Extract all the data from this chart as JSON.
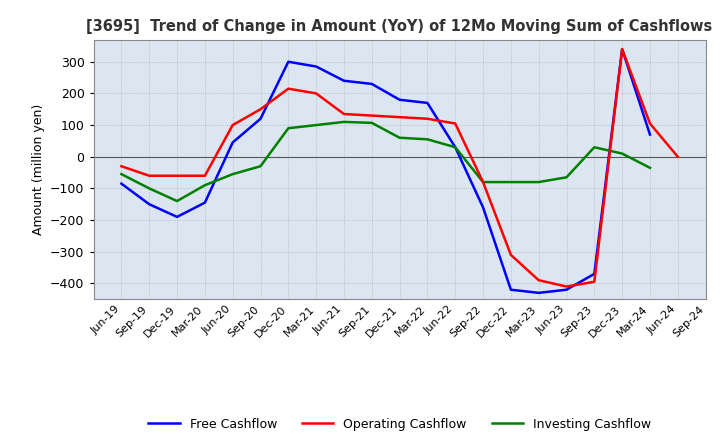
{
  "title": "[3695]  Trend of Change in Amount (YoY) of 12Mo Moving Sum of Cashflows",
  "ylabel": "Amount (million yen)",
  "x_labels": [
    "Jun-19",
    "Sep-19",
    "Dec-19",
    "Mar-20",
    "Jun-20",
    "Sep-20",
    "Dec-20",
    "Mar-21",
    "Jun-21",
    "Sep-21",
    "Dec-21",
    "Mar-22",
    "Jun-22",
    "Sep-22",
    "Dec-22",
    "Mar-23",
    "Jun-23",
    "Sep-23",
    "Dec-23",
    "Mar-24",
    "Jun-24",
    "Sep-24"
  ],
  "operating": [
    -30,
    -60,
    -60,
    -60,
    100,
    150,
    215,
    200,
    135,
    130,
    125,
    120,
    105,
    -80,
    -310,
    -390,
    -410,
    -395,
    340,
    105,
    0,
    null
  ],
  "investing": [
    -55,
    -100,
    -140,
    -90,
    -55,
    -30,
    90,
    100,
    110,
    107,
    60,
    55,
    30,
    -80,
    -80,
    -80,
    -65,
    30,
    10,
    -35,
    null,
    null
  ],
  "free": [
    -85,
    -150,
    -190,
    -145,
    45,
    120,
    300,
    285,
    240,
    230,
    180,
    170,
    30,
    -160,
    -420,
    -430,
    -420,
    -370,
    340,
    70,
    null,
    null
  ],
  "operating_color": "#ff0000",
  "investing_color": "#008000",
  "free_color": "#0000ff",
  "background_color": "#ffffff",
  "plot_bg_color": "#dce6f0",
  "grid_color": "#aaaaaa",
  "ylim": [
    -450,
    370
  ],
  "yticks": [
    -400,
    -300,
    -200,
    -100,
    0,
    100,
    200,
    300
  ],
  "legend_labels": [
    "Operating Cashflow",
    "Investing Cashflow",
    "Free Cashflow"
  ]
}
